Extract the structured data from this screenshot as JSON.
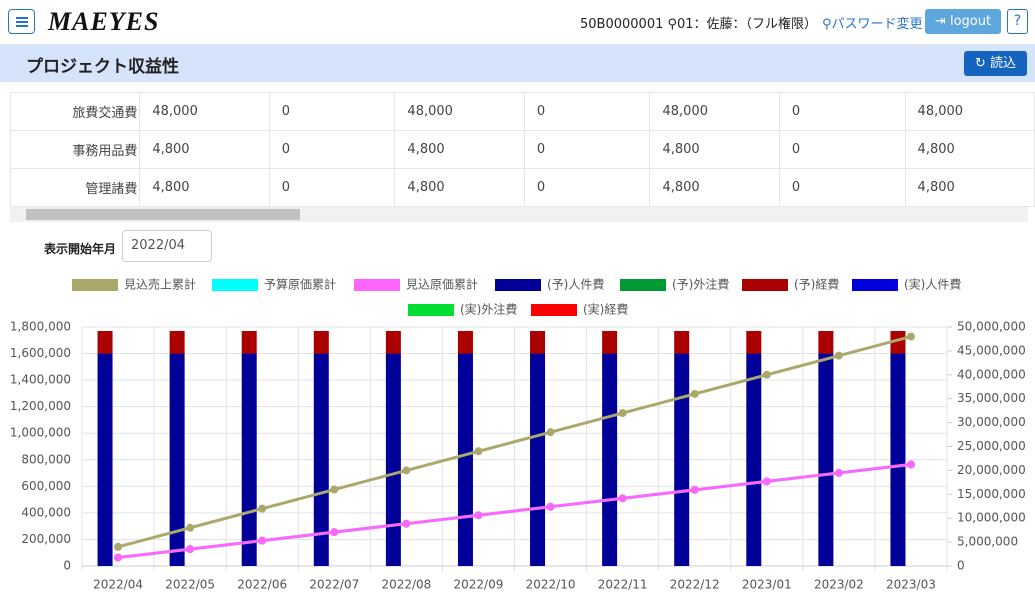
{
  "header": {
    "logo": "MAEYES",
    "user_id": "50B0000001",
    "user": "01：佐藤：（フル権限）",
    "password_link": "パスワード変更",
    "logout": "logout",
    "help": "?"
  },
  "page": {
    "title": "プロジェクト収益性",
    "load_button": "読込"
  },
  "table": {
    "rows": [
      [
        "旅費交通費",
        "48,000",
        "0",
        "48,000",
        "0",
        "48,000",
        "0",
        "48,000"
      ],
      [
        "事務用品費",
        "4,800",
        "0",
        "4,800",
        "0",
        "4,800",
        "0",
        "4,800"
      ],
      [
        "管理諸費",
        "4,800",
        "0",
        "4,800",
        "0",
        "4,800",
        "0",
        "4,800"
      ]
    ]
  },
  "filter": {
    "label": "表示開始年月",
    "value": "2022/04"
  },
  "chart_data": {
    "type": "bar",
    "categories": [
      "2022/04",
      "2022/05",
      "2022/06",
      "2022/07",
      "2022/08",
      "2022/09",
      "2022/10",
      "2022/11",
      "2022/12",
      "2023/01",
      "2023/02",
      "2023/03"
    ],
    "series": [
      {
        "name": "見込売上累計",
        "color": "#aaa86a",
        "type": "line",
        "axis": "y2",
        "values": [
          4000000,
          8000000,
          12000000,
          16000000,
          20000000,
          24000000,
          28000000,
          32000000,
          36000000,
          40000000,
          44000000,
          48000000
        ]
      },
      {
        "name": "予算原価累計",
        "color": "#00ffff",
        "type": "line",
        "axis": "y2",
        "values": [
          1770000,
          3540000,
          5310000,
          7080000,
          8850000,
          10620000,
          12390000,
          14160000,
          15930000,
          17700000,
          19470000,
          21240000
        ]
      },
      {
        "name": "見込原価累計",
        "color": "#ff66ff",
        "type": "line",
        "axis": "y2",
        "values": [
          1770000,
          3540000,
          5310000,
          7080000,
          8850000,
          10620000,
          12390000,
          14160000,
          15930000,
          17700000,
          19470000,
          21240000
        ]
      },
      {
        "name": "(予)人件費",
        "color": "#000099",
        "values": [
          1600000,
          1600000,
          1600000,
          1600000,
          1600000,
          1600000,
          1600000,
          1600000,
          1600000,
          1600000,
          1600000,
          1600000
        ]
      },
      {
        "name": "(予)外注費",
        "color": "#009933",
        "values": [
          0,
          0,
          0,
          0,
          0,
          0,
          0,
          0,
          0,
          0,
          0,
          0
        ]
      },
      {
        "name": "(予)経費",
        "color": "#aa0000",
        "values": [
          170000,
          170000,
          170000,
          170000,
          170000,
          170000,
          170000,
          170000,
          170000,
          170000,
          170000,
          170000
        ]
      },
      {
        "name": "(実)人件費",
        "color": "#0000dd",
        "values": [
          0,
          0,
          0,
          0,
          0,
          0,
          0,
          0,
          0,
          0,
          0,
          0
        ]
      },
      {
        "name": "(実)外注費",
        "color": "#00dd33",
        "values": [
          0,
          0,
          0,
          0,
          0,
          0,
          0,
          0,
          0,
          0,
          0,
          0
        ]
      },
      {
        "name": "(実)経費",
        "color": "#ff0000",
        "values": [
          0,
          0,
          0,
          0,
          0,
          0,
          0,
          0,
          0,
          0,
          0,
          0
        ]
      }
    ],
    "ylim": [
      0,
      1800000
    ],
    "yticks": [
      0,
      {
        "value": 200000,
        "label": "200,000"
      },
      {
        "value": 400000,
        "label": "400,000"
      },
      {
        "value": 600000,
        "label": "600,000"
      },
      {
        "value": 800000,
        "label": "800,000"
      },
      {
        "value": 1000000,
        "label": "1,000,000"
      },
      {
        "value": 1200000,
        "label": "1,200,000"
      },
      {
        "value": 1400000,
        "label": "1,400,000"
      },
      {
        "value": 1600000,
        "label": "1,600,000"
      },
      {
        "value": 1800000,
        "label": "1,800,000"
      }
    ],
    "y2lim": [
      0,
      50000000
    ],
    "y2ticks": [
      0,
      {
        "value": 5000000,
        "label": "5,000,000"
      },
      {
        "value": 10000000,
        "label": "10,000,000"
      },
      {
        "value": 15000000,
        "label": "15,000,000"
      },
      {
        "value": 20000000,
        "label": "20,000,000"
      },
      {
        "value": 25000000,
        "label": "25,000,000"
      },
      {
        "value": 30000000,
        "label": "30,000,000"
      },
      {
        "value": 35000000,
        "label": "35,000,000"
      },
      {
        "value": 40000000,
        "label": "40,000,000"
      },
      {
        "value": 45000000,
        "label": "45,000,000"
      },
      {
        "value": 50000000,
        "label": "50,000,000"
      }
    ],
    "grid": true,
    "legend": "top"
  }
}
